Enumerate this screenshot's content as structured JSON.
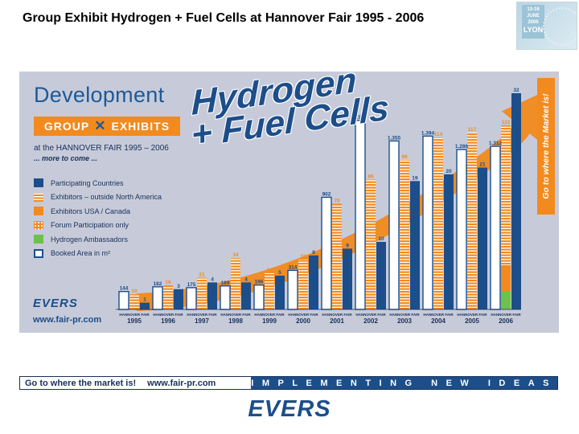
{
  "slide": {
    "title": "Group Exhibit Hydrogen + Fuel Cells at Hannover Fair 1995 - 2006",
    "corner_logo": {
      "date_lines": [
        "13-16",
        "JUNE",
        "2006"
      ],
      "city": "LYON",
      "icon": "europe-map-icon"
    }
  },
  "panel": {
    "heading": "Development",
    "banner_left": "GROUP",
    "banner_right": "EXHIBITS",
    "banner_icon": "cross-icon",
    "subtitle": "at the HANNOVER FAIR 1995 – 2006",
    "subtitle2": "... more to come ...",
    "headline_line1": "Hydrogen",
    "headline_line2": "+ Fuel Cells",
    "vertical_text": "Go to where the Market is!",
    "logo": "EVERS",
    "website": "www.fair-pr.com"
  },
  "chart_data": {
    "type": "bar",
    "categories": [
      "1995",
      "1996",
      "1997",
      "1998",
      "1999",
      "2000",
      "2001",
      "2002",
      "2003",
      "2004",
      "2005",
      "2006"
    ],
    "axis_caption": "HANNOVER FAIR",
    "series": [
      {
        "name": "Participating Countries",
        "values": [
          1,
          3,
          4,
          4,
          5,
          8,
          9,
          10,
          19,
          20,
          21,
          32
        ]
      },
      {
        "name": "Exhibitors – outside North America",
        "values": [
          10,
          16,
          21,
          34,
          24,
          33,
          70,
          86,
          99,
          114,
          117,
          122
        ]
      },
      {
        "name": "Exhibitors USA / Canada",
        "values": [
          null,
          null,
          null,
          null,
          null,
          null,
          null,
          null,
          null,
          null,
          null,
          null
        ]
      },
      {
        "name": "Forum Participation only",
        "values": [
          null,
          null,
          null,
          null,
          null,
          null,
          null,
          null,
          null,
          null,
          null,
          null
        ]
      },
      {
        "name": "Hydrogen Ambassadors",
        "values": [
          null,
          null,
          null,
          null,
          null,
          null,
          null,
          null,
          null,
          null,
          null,
          null
        ]
      },
      {
        "name": "Booked Area in m²",
        "values": [
          144,
          182,
          175,
          189,
          196,
          314,
          902,
          1520,
          1355,
          1394,
          1286,
          1312
        ]
      }
    ],
    "value_labels": {
      "countries": [
        "1",
        "3",
        "4",
        "4",
        "5",
        "8",
        "9",
        "10",
        "19",
        "20",
        "21",
        "32"
      ],
      "exhibitors": [
        "10",
        "16",
        "21",
        "34",
        "24",
        "33",
        "70",
        "86",
        "99",
        "114",
        "117",
        "122"
      ],
      "area": [
        "144",
        "182",
        "175",
        "189",
        "196",
        "314",
        "902",
        "1.520",
        "1.355",
        "1.394",
        "1.286",
        "1.312"
      ]
    },
    "grid": false,
    "legend_position": "left",
    "colors": {
      "countries": "#1c4e8a",
      "exhibitors": "#f28a1e",
      "area": "#ffffff",
      "ambassadors": "#6cc24a",
      "arrow": "#f28a1e"
    }
  },
  "footer": {
    "slogan": "Go to where the market is!",
    "website": "www.fair-pr.com",
    "tagline": "IMPLEMENTING NEW IDEAS",
    "logo": "EVERS"
  }
}
